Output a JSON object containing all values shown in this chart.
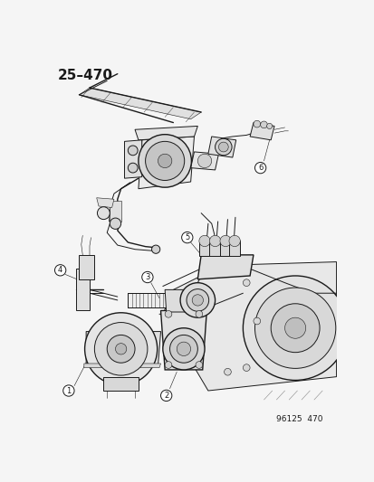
{
  "title": "25–470",
  "footer": "96125  470",
  "bg_color": "#f5f5f5",
  "line_color": "#1a1a1a",
  "title_fontsize": 11,
  "footer_fontsize": 6.5,
  "fig_width": 4.14,
  "fig_height": 5.33,
  "dpi": 100
}
